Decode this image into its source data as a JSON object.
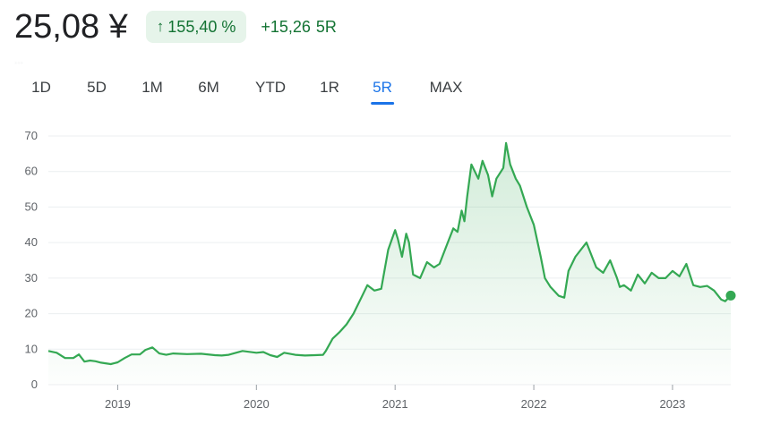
{
  "quote": {
    "price": "25,08 ¥",
    "percent_change": "155,40 %",
    "change_arrow_icon": "arrow-up-icon",
    "abs_change": "+15,26",
    "change_period": "5R",
    "timestamp": "..."
  },
  "ranges": [
    {
      "label": "1D",
      "active": false
    },
    {
      "label": "5D",
      "active": false
    },
    {
      "label": "1M",
      "active": false
    },
    {
      "label": "6M",
      "active": false
    },
    {
      "label": "YTD",
      "active": false
    },
    {
      "label": "1R",
      "active": false
    },
    {
      "label": "5R",
      "active": true
    },
    {
      "label": "MAX",
      "active": false
    }
  ],
  "colors": {
    "line": "#34a853",
    "positive_text": "#137333",
    "positive_bg": "#e6f4ea",
    "active_tab": "#1a73e8"
  },
  "chart_data": {
    "type": "area",
    "title": "",
    "xlabel": "",
    "ylabel": "",
    "ylim": [
      0,
      70
    ],
    "yticks": [
      "0",
      "10",
      "20",
      "30",
      "40",
      "50",
      "60",
      "70"
    ],
    "xticks": [
      "2019",
      "2020",
      "2021",
      "2022",
      "2023"
    ],
    "xlim": [
      2018.5,
      2023.42
    ],
    "grid": true,
    "legend": "none",
    "series": [
      {
        "x": [
          2018.5,
          2018.56,
          2018.62,
          2018.68,
          2018.72,
          2018.76,
          2018.8,
          2018.84,
          2018.88,
          2018.95,
          2019.0,
          2019.05,
          2019.1,
          2019.16,
          2019.2,
          2019.25,
          2019.3,
          2019.35,
          2019.4,
          2019.5,
          2019.6,
          2019.7,
          2019.75,
          2019.8,
          2019.9,
          2020.0,
          2020.05,
          2020.1,
          2020.15,
          2020.2,
          2020.28,
          2020.35,
          2020.42,
          2020.48,
          2020.5,
          2020.55,
          2020.6,
          2020.65,
          2020.7,
          2020.75,
          2020.8,
          2020.85,
          2020.9,
          2020.95,
          2021.0,
          2021.02,
          2021.05,
          2021.08,
          2021.1,
          2021.13,
          2021.18,
          2021.23,
          2021.28,
          2021.32,
          2021.38,
          2021.42,
          2021.45,
          2021.48,
          2021.5,
          2021.52,
          2021.55,
          2021.6,
          2021.63,
          2021.67,
          2021.7,
          2021.73,
          2021.78,
          2021.8,
          2021.83,
          2021.87,
          2021.9,
          2021.95,
          2022.0,
          2022.05,
          2022.08,
          2022.12,
          2022.18,
          2022.22,
          2022.25,
          2022.3,
          2022.38,
          2022.42,
          2022.45,
          2022.5,
          2022.55,
          2022.6,
          2022.62,
          2022.65,
          2022.7,
          2022.75,
          2022.8,
          2022.85,
          2022.9,
          2022.95,
          2023.0,
          2023.05,
          2023.1,
          2023.15,
          2023.2,
          2023.25,
          2023.3,
          2023.35,
          2023.38,
          2023.42
        ],
        "y": [
          9.5,
          9.0,
          7.5,
          7.5,
          8.5,
          6.5,
          6.8,
          6.6,
          6.2,
          5.8,
          6.3,
          7.5,
          8.5,
          8.5,
          9.8,
          10.5,
          8.8,
          8.4,
          8.8,
          8.6,
          8.7,
          8.3,
          8.2,
          8.4,
          9.5,
          9.0,
          9.2,
          8.3,
          7.8,
          9.0,
          8.4,
          8.2,
          8.3,
          8.4,
          9.5,
          13.0,
          14.8,
          17.0,
          20.0,
          24.0,
          28.0,
          26.5,
          27.0,
          38.0,
          43.5,
          41.0,
          36.0,
          42.5,
          40.0,
          31.0,
          30.0,
          34.5,
          33.0,
          34.0,
          40.0,
          44.0,
          43.0,
          49.0,
          46.0,
          53.0,
          62.0,
          58.0,
          63.0,
          59.0,
          53.0,
          58.0,
          61.0,
          68.0,
          62.0,
          58.0,
          56.0,
          50.0,
          45.0,
          36.0,
          30.0,
          27.5,
          25.0,
          24.5,
          32.0,
          36.0,
          40.0,
          36.0,
          33.0,
          31.5,
          35.0,
          30.0,
          27.5,
          28.0,
          26.5,
          31.0,
          28.5,
          31.5,
          30.0,
          30.0,
          32.0,
          30.5,
          34.0,
          28.0,
          27.5,
          27.8,
          26.5,
          24.0,
          23.5,
          25.08
        ]
      }
    ]
  }
}
